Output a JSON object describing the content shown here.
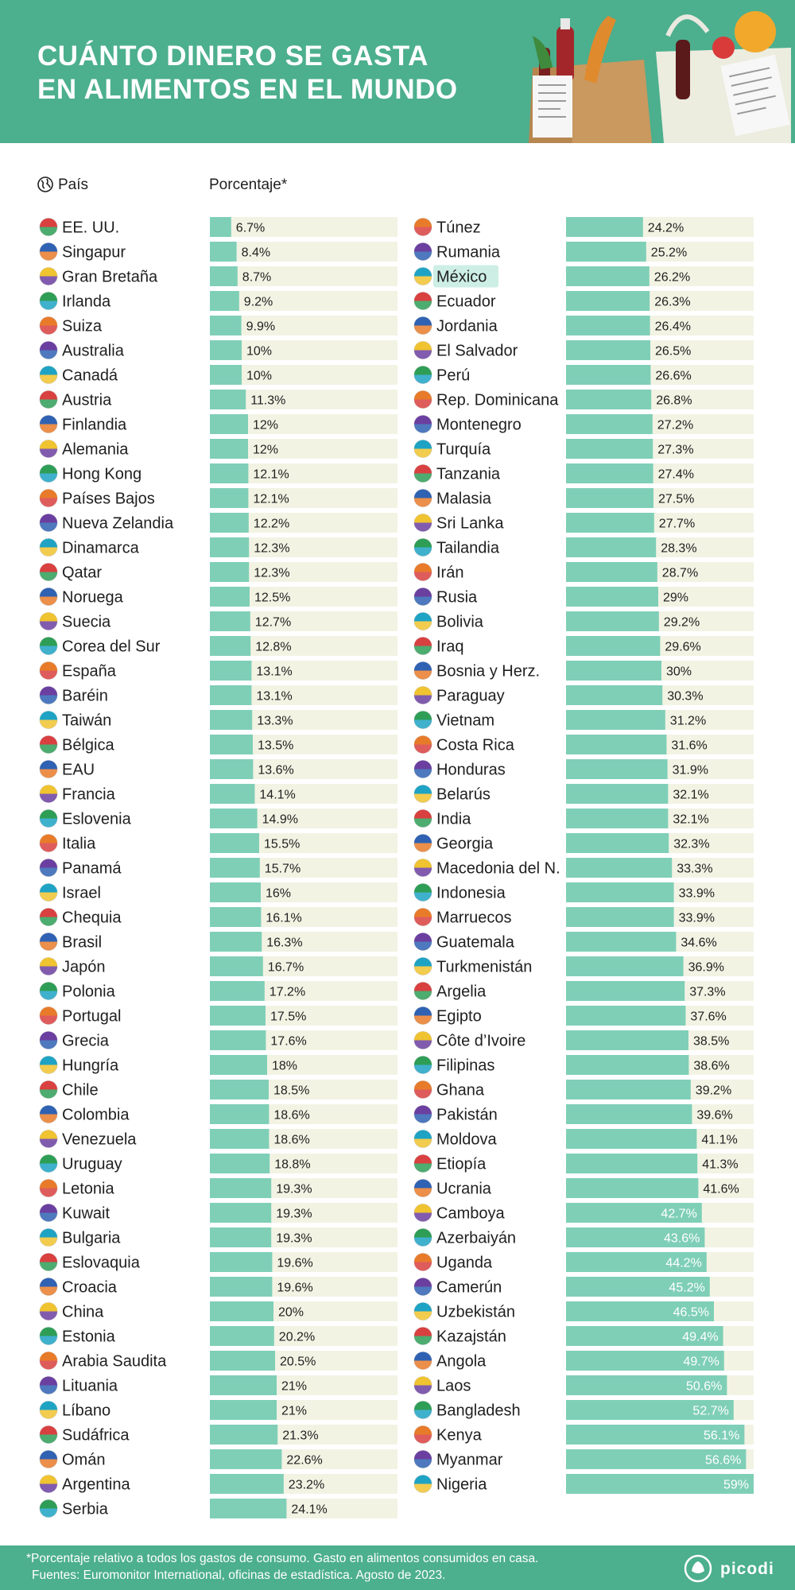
{
  "header": {
    "title": "CUÁNTO DINERO SE GASTA\nEN ALIMENTOS EN EL MUNDO"
  },
  "columns": {
    "country_header": "País",
    "percent_header": "Porcentaje*"
  },
  "colors": {
    "header_bg": "#4caf8e",
    "bar": "#7fcfb7",
    "track": "#f3f3e4",
    "highlight": "#cdeee4",
    "text": "#1f1f1f"
  },
  "highlighted_country": "México",
  "chart_data": {
    "type": "bar",
    "orientation": "horizontal",
    "title": "CUÁNTO DINERO SE GASTA EN ALIMENTOS EN EL MUNDO",
    "xlabel": "Porcentaje*",
    "ylabel": "País",
    "xlim": [
      0,
      59
    ],
    "grid": false,
    "value_suffix": "%",
    "categories": [
      "EE. UU.",
      "Singapur",
      "Gran Bretaña",
      "Irlanda",
      "Suiza",
      "Australia",
      "Canadá",
      "Austria",
      "Finlandia",
      "Alemania",
      "Hong Kong",
      "Países Bajos",
      "Nueva Zelandia",
      "Dinamarca",
      "Qatar",
      "Noruega",
      "Suecia",
      "Corea del Sur",
      "España",
      "Baréin",
      "Taiwán",
      "Bélgica",
      "EAU",
      "Francia",
      "Eslovenia",
      "Italia",
      "Panamá",
      "Israel",
      "Chequia",
      "Brasil",
      "Japón",
      "Polonia",
      "Portugal",
      "Grecia",
      "Hungría",
      "Chile",
      "Colombia",
      "Venezuela",
      "Uruguay",
      "Letonia",
      "Kuwait",
      "Bulgaria",
      "Eslovaquia",
      "Croacia",
      "China",
      "Estonia",
      "Arabia Saudita",
      "Lituania",
      "Líbano",
      "Sudáfrica",
      "Omán",
      "Argentina",
      "Serbia",
      "Túnez",
      "Rumania",
      "México",
      "Ecuador",
      "Jordania",
      "El Salvador",
      "Perú",
      "Rep. Dominicana",
      "Montenegro",
      "Turquía",
      "Tanzania",
      "Malasia",
      "Sri Lanka",
      "Tailandia",
      "Irán",
      "Rusia",
      "Bolivia",
      "Iraq",
      "Bosnia y Herz.",
      "Paraguay",
      "Vietnam",
      "Costa Rica",
      "Honduras",
      "Belarús",
      "India",
      "Georgia",
      "Macedonia del N.",
      "Indonesia",
      "Marruecos",
      "Guatemala",
      "Turkmenistán",
      "Argelia",
      "Egipto",
      "Côte d’Ivoire",
      "Filipinas",
      "Ghana",
      "Pakistán",
      "Moldova",
      "Etiopía",
      "Ucrania",
      "Camboya",
      "Azerbaiyán",
      "Uganda",
      "Camerún",
      "Uzbekistán",
      "Kazajstán",
      "Angola",
      "Laos",
      "Bangladesh",
      "Kenya",
      "Myanmar",
      "Nigeria"
    ],
    "values": [
      6.7,
      8.4,
      8.7,
      9.2,
      9.9,
      10,
      10,
      11.3,
      12,
      12,
      12.1,
      12.1,
      12.2,
      12.3,
      12.3,
      12.5,
      12.7,
      12.8,
      13.1,
      13.1,
      13.3,
      13.5,
      13.6,
      14.1,
      14.9,
      15.5,
      15.7,
      16,
      16.1,
      16.3,
      16.7,
      17.2,
      17.5,
      17.6,
      18,
      18.5,
      18.6,
      18.6,
      18.8,
      19.3,
      19.3,
      19.3,
      19.6,
      19.6,
      20,
      20.2,
      20.5,
      21,
      21,
      21.3,
      22.6,
      23.2,
      24.1,
      24.2,
      25.2,
      26.2,
      26.3,
      26.4,
      26.5,
      26.6,
      26.8,
      27.2,
      27.3,
      27.4,
      27.5,
      27.7,
      28.3,
      28.7,
      29,
      29.2,
      29.6,
      30,
      30.3,
      31.2,
      31.6,
      31.9,
      32.1,
      32.1,
      32.3,
      33.3,
      33.9,
      33.9,
      34.6,
      36.9,
      37.3,
      37.6,
      38.5,
      38.6,
      39.2,
      39.6,
      41.1,
      41.3,
      41.6,
      42.7,
      43.6,
      44.2,
      45.2,
      46.5,
      49.4,
      49.7,
      50.6,
      52.7,
      56.1,
      56.6,
      59
    ],
    "labels": [
      "6.7%",
      "8.4%",
      "8.7%",
      "9.2%",
      "9.9%",
      "10%",
      "10%",
      "11.3%",
      "12%",
      "12%",
      "12.1%",
      "12.1%",
      "12.2%",
      "12.3%",
      "12.3%",
      "12.5%",
      "12.7%",
      "12.8%",
      "13.1%",
      "13.1%",
      "13.3%",
      "13.5%",
      "13.6%",
      "14.1%",
      "14.9%",
      "15.5%",
      "15.7%",
      "16%",
      "16.1%",
      "16.3%",
      "16.7%",
      "17.2%",
      "17.5%",
      "17.6%",
      "18%",
      "18.5%",
      "18.6%",
      "18.6%",
      "18.8%",
      "19.3%",
      "19.3%",
      "19.3%",
      "19.6%",
      "19.6%",
      "20%",
      "20.2%",
      "20.5%",
      "21%",
      "21%",
      "21.3%",
      "22.6%",
      "23.2%",
      "24.1%",
      "24.2%",
      "25.2%",
      "26.2%",
      "26.3%",
      "26.4%",
      "26.5%",
      "26.6%",
      "26.8%",
      "27.2%",
      "27.3%",
      "27.4%",
      "27.5%",
      "27.7%",
      "28.3%",
      "28.7%",
      "29%",
      "29.2%",
      "29.6%",
      "30%",
      "30.3%",
      "31.2%",
      "31.6%",
      "31.9%",
      "32.1%",
      "32.1%",
      "32.3%",
      "33.3%",
      "33.9%",
      "33.9%",
      "34.6%",
      "36.9%",
      "37.3%",
      "37.6%",
      "38.5%",
      "38.6%",
      "39.2%",
      "39.6%",
      "41.1%",
      "41.3%",
      "41.6%",
      "42.7%",
      "43.6%",
      "44.2%",
      "45.2%",
      "46.5%",
      "49.4%",
      "49.7%",
      "50.6%",
      "52.7%",
      "56.1%",
      "56.6%",
      "59%"
    ]
  },
  "footer": {
    "note1": "*Porcentaje relativo a todos los gastos de consumo. Gasto en alimentos consumidos en casa.",
    "note2": "Fuentes: Euromonitor International, oficinas de estadística. Agosto de 2023.",
    "brand": "picodi"
  }
}
